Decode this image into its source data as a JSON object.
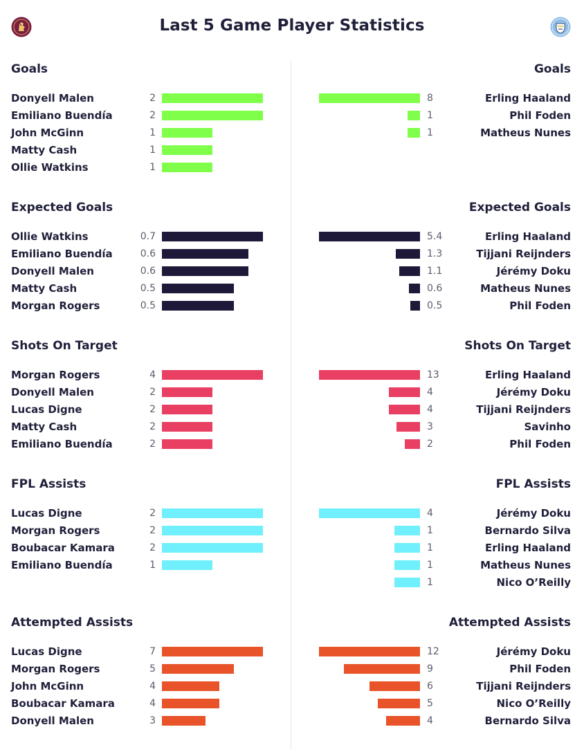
{
  "title": "Last 5 Game Player Statistics",
  "teams": {
    "home": {
      "crest_icon": "aston-villa-crest-icon",
      "color": "#7a1e3f"
    },
    "away": {
      "crest_icon": "man-city-crest-icon",
      "color": "#8fbde6"
    }
  },
  "chart_data": [
    {
      "type": "bar",
      "title": "Goals",
      "color": "#80ff4a",
      "home": [
        {
          "name": "Donyell Malen",
          "value": 2
        },
        {
          "name": "Emiliano Buendía",
          "value": 2
        },
        {
          "name": "John McGinn",
          "value": 1
        },
        {
          "name": "Matty Cash",
          "value": 1
        },
        {
          "name": "Ollie Watkins",
          "value": 1
        }
      ],
      "away": [
        {
          "name": "Erling Haaland",
          "value": 8
        },
        {
          "name": "Phil Foden",
          "value": 1
        },
        {
          "name": "Matheus Nunes",
          "value": 1
        }
      ]
    },
    {
      "type": "bar",
      "title": "Expected Goals",
      "color": "#1e1839",
      "home": [
        {
          "name": "Ollie Watkins",
          "value": 0.7
        },
        {
          "name": "Emiliano Buendía",
          "value": 0.6
        },
        {
          "name": "Donyell Malen",
          "value": 0.6
        },
        {
          "name": "Matty Cash",
          "value": 0.5
        },
        {
          "name": "Morgan Rogers",
          "value": 0.5
        }
      ],
      "away": [
        {
          "name": "Erling Haaland",
          "value": 5.4
        },
        {
          "name": "Tijjani Reijnders",
          "value": 1.3
        },
        {
          "name": "Jérémy Doku",
          "value": 1.1
        },
        {
          "name": "Matheus Nunes",
          "value": 0.6
        },
        {
          "name": "Phil Foden",
          "value": 0.5
        }
      ]
    },
    {
      "type": "bar",
      "title": "Shots On Target",
      "color": "#e93f62",
      "home": [
        {
          "name": "Morgan Rogers",
          "value": 4
        },
        {
          "name": "Donyell Malen",
          "value": 2
        },
        {
          "name": "Lucas Digne",
          "value": 2
        },
        {
          "name": "Matty Cash",
          "value": 2
        },
        {
          "name": "Emiliano Buendía",
          "value": 2
        }
      ],
      "away": [
        {
          "name": "Erling Haaland",
          "value": 13
        },
        {
          "name": "Jérémy Doku",
          "value": 4
        },
        {
          "name": "Tijjani Reijnders",
          "value": 4
        },
        {
          "name": "Savinho",
          "value": 3
        },
        {
          "name": "Phil Foden",
          "value": 2
        }
      ]
    },
    {
      "type": "bar",
      "title": "FPL Assists",
      "color": "#6ff0fc",
      "home": [
        {
          "name": "Lucas Digne",
          "value": 2
        },
        {
          "name": "Morgan Rogers",
          "value": 2
        },
        {
          "name": "Boubacar Kamara",
          "value": 2
        },
        {
          "name": "Emiliano Buendía",
          "value": 1
        }
      ],
      "away": [
        {
          "name": "Jérémy Doku",
          "value": 4
        },
        {
          "name": "Bernardo Silva",
          "value": 1
        },
        {
          "name": "Erling Haaland",
          "value": 1
        },
        {
          "name": "Matheus Nunes",
          "value": 1
        },
        {
          "name": "Nico O’Reilly",
          "value": 1
        }
      ]
    },
    {
      "type": "bar",
      "title": "Attempted Assists",
      "color": "#e8532a",
      "home": [
        {
          "name": "Lucas Digne",
          "value": 7
        },
        {
          "name": "Morgan Rogers",
          "value": 5
        },
        {
          "name": "John McGinn",
          "value": 4
        },
        {
          "name": "Boubacar Kamara",
          "value": 4
        },
        {
          "name": "Donyell Malen",
          "value": 3
        }
      ],
      "away": [
        {
          "name": "Jérémy Doku",
          "value": 12
        },
        {
          "name": "Phil Foden",
          "value": 9
        },
        {
          "name": "Tijjani Reijnders",
          "value": 6
        },
        {
          "name": "Nico O’Reilly",
          "value": 5
        },
        {
          "name": "Bernardo Silva",
          "value": 4
        }
      ]
    }
  ]
}
